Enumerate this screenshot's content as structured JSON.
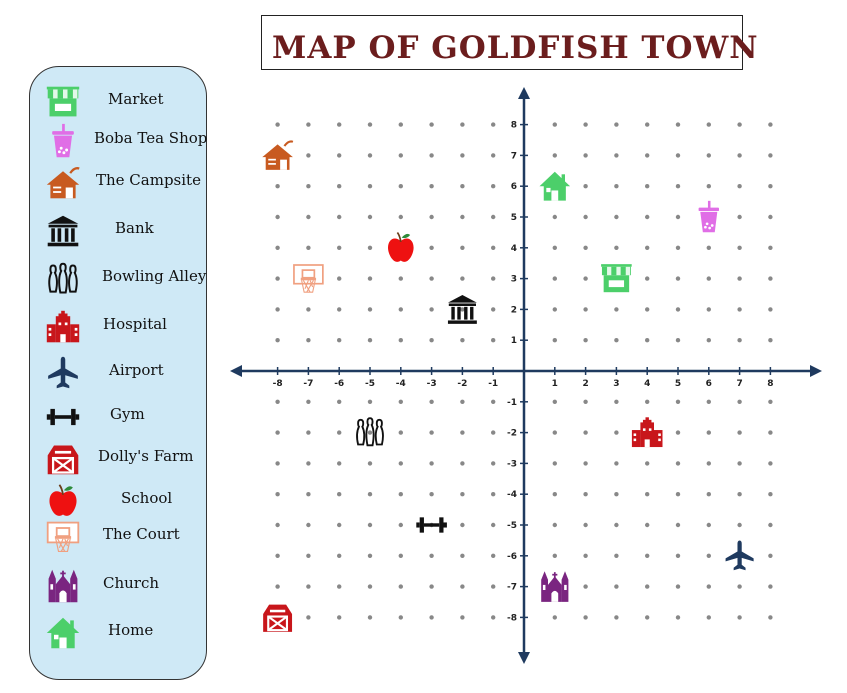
{
  "title": "MAP OF GOLDFISH TOWN",
  "colors": {
    "legend_bg": "#cfe9f6",
    "axis": "#1f3a5f",
    "title": "#6b1d1d"
  },
  "legend": [
    {
      "label": "Market",
      "icon": "market-icon",
      "color": "#4ccf6a"
    },
    {
      "label": "Boba Tea Shop",
      "icon": "boba-tea-icon",
      "color": "#e06ee6"
    },
    {
      "label": "The Campsite",
      "icon": "campsite-icon",
      "color": "#c85a20"
    },
    {
      "label": "Bank",
      "icon": "bank-icon",
      "color": "#111111"
    },
    {
      "label": "Bowling Alley",
      "icon": "bowling-pins-icon",
      "color": "#111111"
    },
    {
      "label": "Hospital",
      "icon": "hospital-icon",
      "color": "#c8161b"
    },
    {
      "label": "Airport",
      "icon": "airplane-icon",
      "color": "#1f3a5f"
    },
    {
      "label": "Gym",
      "icon": "dumbbell-icon",
      "color": "#111111"
    },
    {
      "label": "Dolly's Farm",
      "icon": "barn-icon",
      "color": "#c8161b"
    },
    {
      "label": "School",
      "icon": "apple-icon",
      "color": "#ee1111"
    },
    {
      "label": "The Court",
      "icon": "basketball-hoop-icon",
      "color": "#f0a080"
    },
    {
      "label": "Church",
      "icon": "church-icon",
      "color": "#7a2580"
    },
    {
      "label": "Home",
      "icon": "house-icon",
      "color": "#4ccf6a"
    }
  ],
  "chart_data": {
    "type": "scatter",
    "xlim": [
      -8,
      8
    ],
    "ylim": [
      -8,
      8
    ],
    "x_ticks": [
      -8,
      -7,
      -6,
      -5,
      -4,
      -3,
      -2,
      -1,
      1,
      2,
      3,
      4,
      5,
      6,
      7,
      8
    ],
    "y_ticks": [
      -8,
      -7,
      -6,
      -5,
      -4,
      -3,
      -2,
      -1,
      1,
      2,
      3,
      4,
      5,
      6,
      7,
      8
    ],
    "grid": "dots",
    "locations": [
      {
        "name": "The Campsite",
        "icon": "campsite-icon",
        "x": -8,
        "y": 7
      },
      {
        "name": "Home",
        "icon": "house-icon",
        "x": 1,
        "y": 6
      },
      {
        "name": "Boba Tea Shop",
        "icon": "boba-tea-icon",
        "x": 6,
        "y": 5
      },
      {
        "name": "School",
        "icon": "apple-icon",
        "x": -4,
        "y": 4
      },
      {
        "name": "The Court",
        "icon": "basketball-hoop-icon",
        "x": -7,
        "y": 3
      },
      {
        "name": "Market",
        "icon": "market-icon",
        "x": 3,
        "y": 3
      },
      {
        "name": "Bank",
        "icon": "bank-icon",
        "x": -2,
        "y": 2
      },
      {
        "name": "Bowling Alley",
        "icon": "bowling-pins-icon",
        "x": -5,
        "y": -2
      },
      {
        "name": "Hospital",
        "icon": "hospital-icon",
        "x": 4,
        "y": -2
      },
      {
        "name": "Gym",
        "icon": "dumbbell-icon",
        "x": -3,
        "y": -5
      },
      {
        "name": "Airport",
        "icon": "airplane-icon",
        "x": 7,
        "y": -6
      },
      {
        "name": "Church",
        "icon": "church-icon",
        "x": 1,
        "y": -7
      },
      {
        "name": "Dolly's Farm",
        "icon": "barn-icon",
        "x": -8,
        "y": -8
      }
    ]
  }
}
